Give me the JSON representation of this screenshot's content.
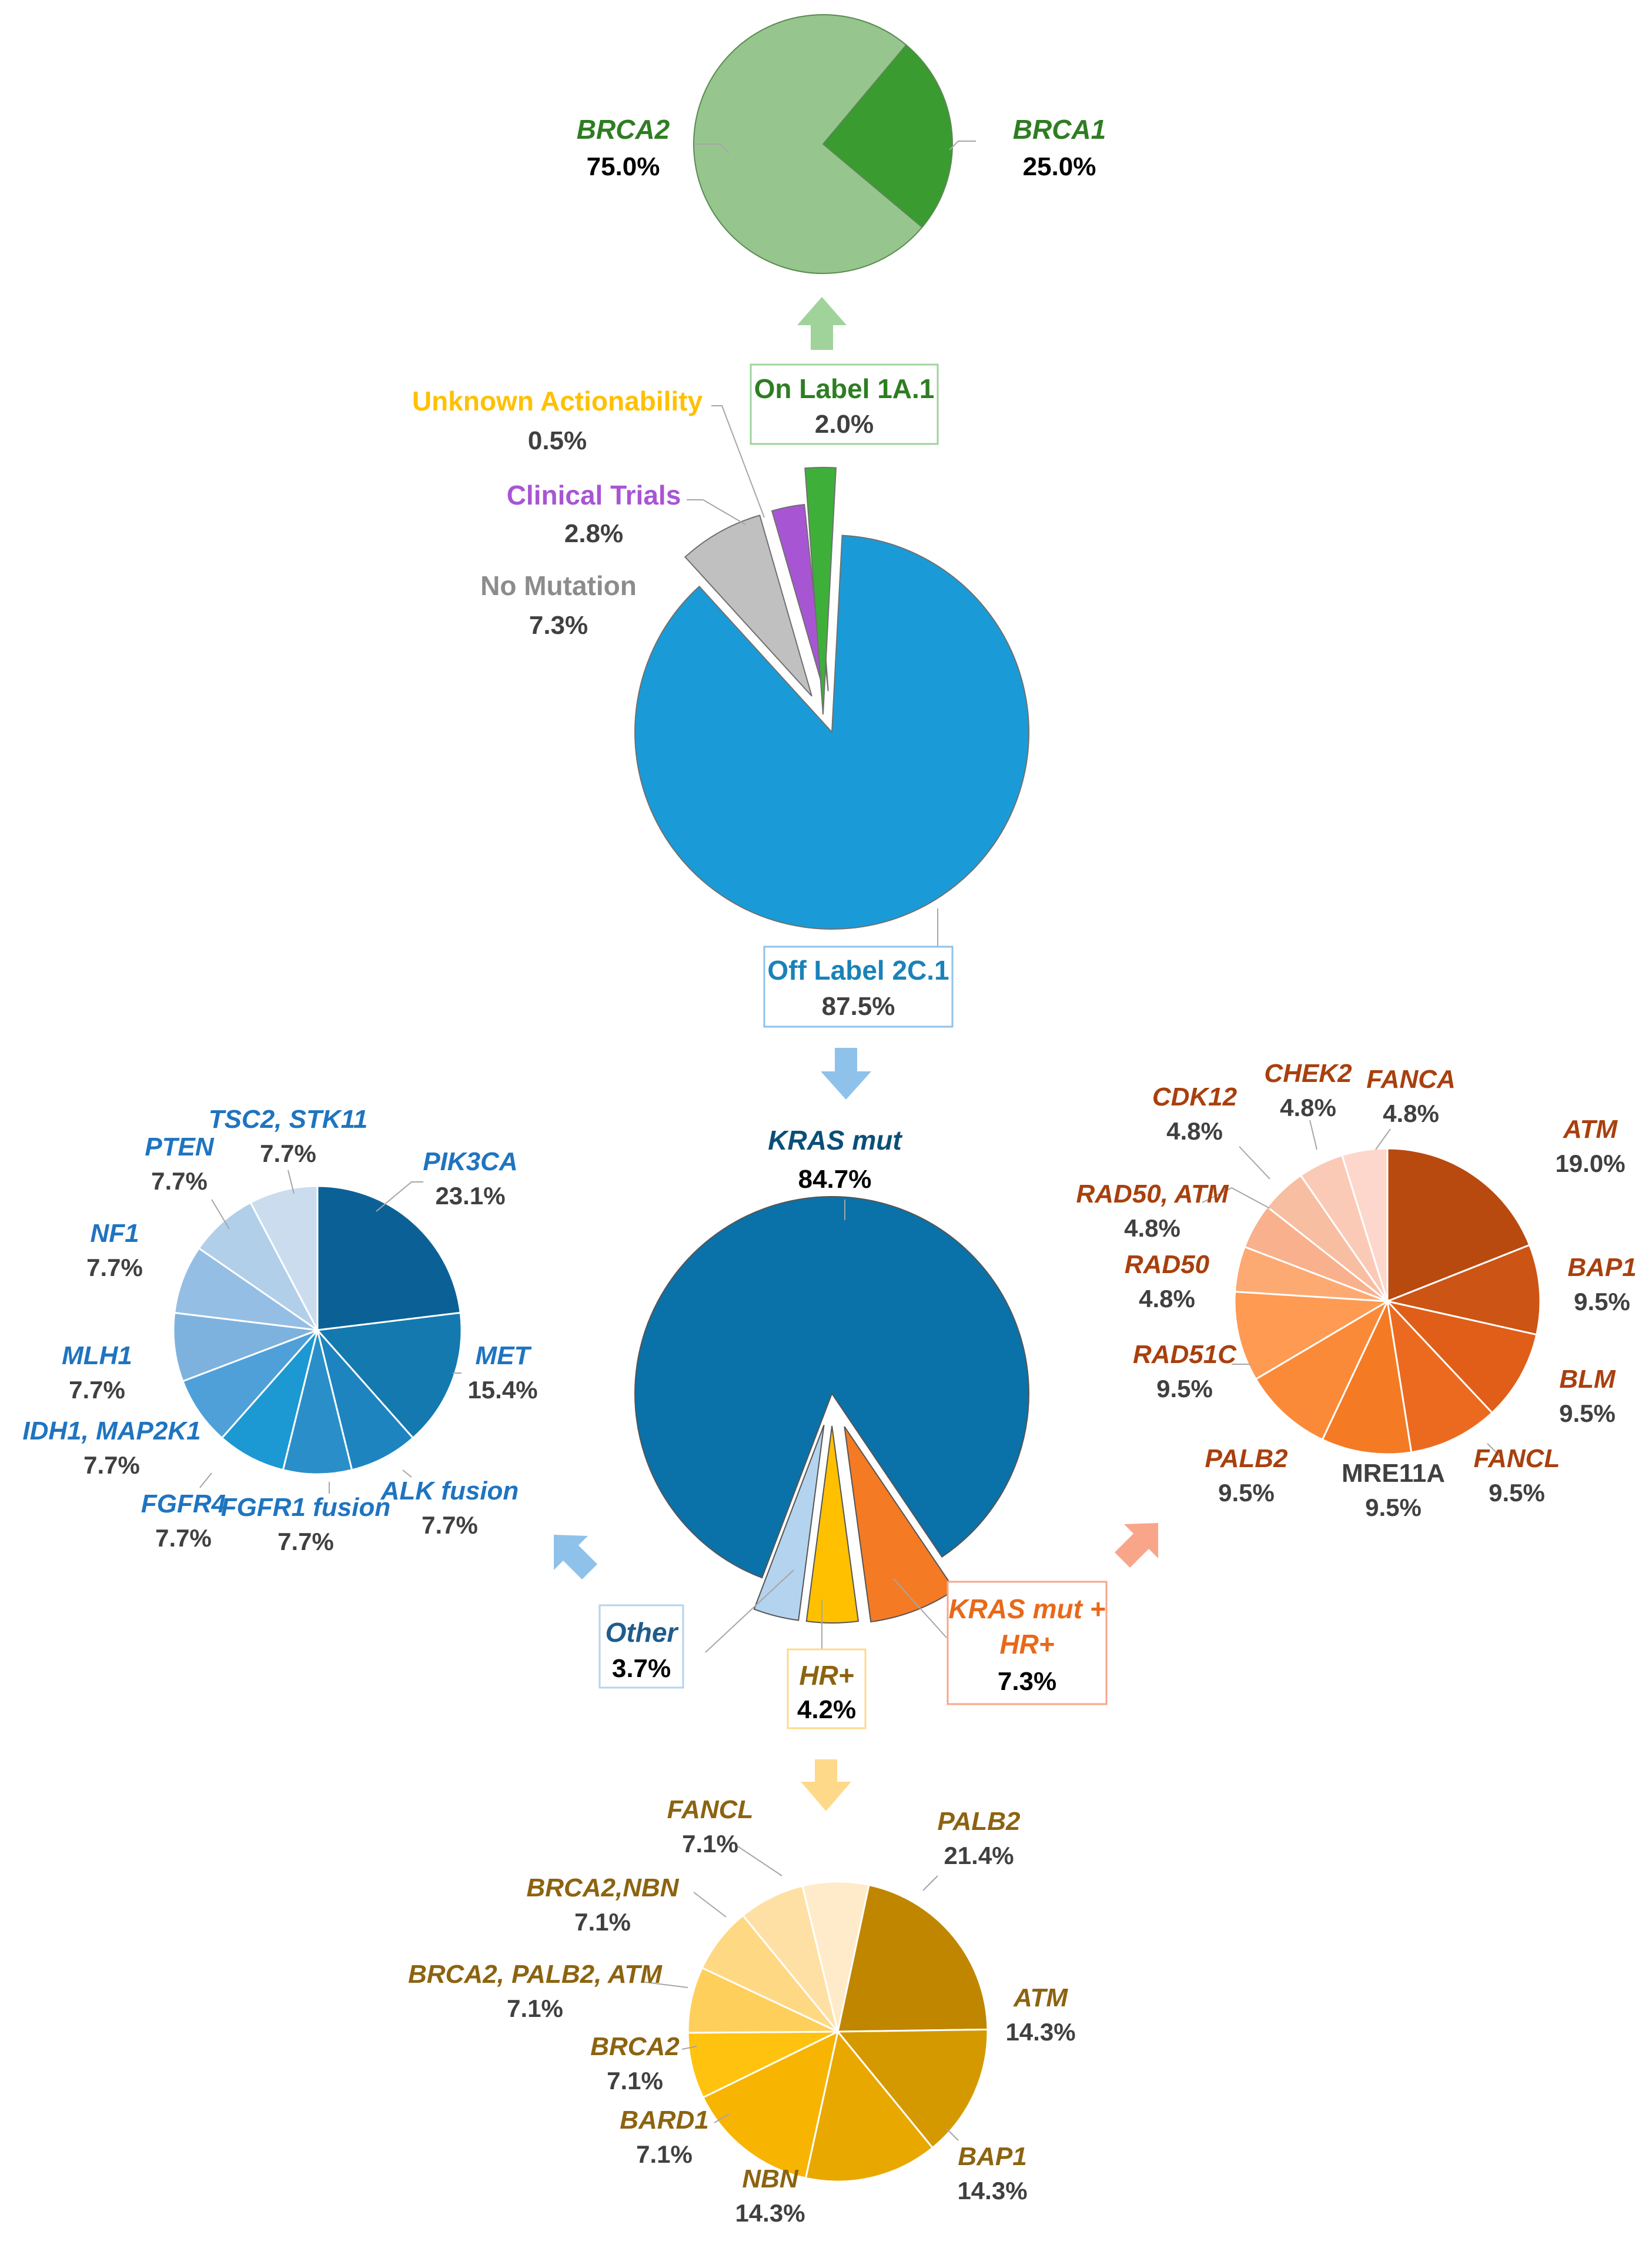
{
  "chart_data": [
    {
      "id": "top",
      "type": "pie",
      "labels": [
        "BRCA1",
        "BRCA2"
      ],
      "values": [
        25.0,
        75.0
      ],
      "value_labels": [
        "25.0%",
        "75.0%"
      ],
      "colors": [
        "#3a9b30",
        "#96c68d"
      ]
    },
    {
      "id": "main",
      "type": "pie",
      "labels": [
        "Off Label 2C.1",
        "No Mutation",
        "Clinical Trials",
        "Unknown Actionability",
        "On Label 1A.1"
      ],
      "values": [
        87.5,
        7.3,
        2.8,
        0.5,
        2.0
      ],
      "value_labels": [
        "87.5%",
        "7.3%",
        "2.8%",
        "0.5%",
        "2.0%"
      ],
      "colors": [
        "#1a9bd7",
        "#c0c0c0",
        "#a855d4",
        "#ffc000",
        "#3eb03a"
      ],
      "text_colors": [
        "#1a82b8",
        "#8c8c8c",
        "#a855d4",
        "#ffc000",
        "#3a8a2c"
      ]
    },
    {
      "id": "kras",
      "type": "pie",
      "labels": [
        "KRAS mut",
        "KRAS mut + HR+",
        "HR+",
        "Other"
      ],
      "values": [
        84.7,
        7.3,
        4.2,
        3.7
      ],
      "value_labels": [
        "84.7%",
        "7.3%",
        "4.2%",
        "3.7%"
      ],
      "colors": [
        "#0a72a8",
        "#f47a24",
        "#ffc000",
        "#b4d3ee"
      ],
      "text_colors": [
        "#0a4f78",
        "#e8691a",
        "#8c6310",
        "#1f5c8c"
      ]
    },
    {
      "id": "other",
      "type": "pie",
      "labels": [
        "PIK3CA",
        "MET",
        "ALK fusion",
        "FGFR1 fusion",
        "FGFR4",
        "IDH1, MAP2K1",
        "MLH1",
        "NF1",
        "PTEN",
        "TSC2, STK11"
      ],
      "values": [
        23.1,
        15.4,
        7.7,
        7.7,
        7.7,
        7.7,
        7.7,
        7.7,
        7.7,
        7.7
      ],
      "value_labels": [
        "23.1%",
        "15.4%",
        "7.7%",
        "7.7%",
        "7.7%",
        "7.7%",
        "7.7%",
        "7.7%",
        "7.7%",
        "7.7%"
      ],
      "colors": [
        "#0b6195",
        "#1479ae",
        "#1e84c0",
        "#2a8fc8",
        "#1c98d2",
        "#4fa0d8",
        "#7eb2de",
        "#95bee4",
        "#b2cfea",
        "#cbdcef"
      ]
    },
    {
      "id": "krashr",
      "type": "pie",
      "labels": [
        "ATM",
        "BAP1",
        "BLM",
        "FANCL",
        "MRE11A",
        "PALB2",
        "RAD51C",
        "RAD50",
        "RAD50, ATM",
        "CDK12",
        "CHEK2",
        "FANCA"
      ],
      "values": [
        19.0,
        9.5,
        9.5,
        9.5,
        9.5,
        9.5,
        9.5,
        4.8,
        4.8,
        4.8,
        4.8,
        4.8
      ],
      "value_labels": [
        "19.0%",
        "9.5%",
        "9.5%",
        "9.5%",
        "9.5%",
        "9.5%",
        "9.5%",
        "4.8%",
        "4.8%",
        "4.8%",
        "4.8%",
        "4.8%"
      ],
      "colors": [
        "#b84a10",
        "#cc5414",
        "#e05e18",
        "#ec6a20",
        "#f47a24",
        "#fb8a38",
        "#fe9a52",
        "#fdaa72",
        "#f9b08c",
        "#f8bea2",
        "#fbcab6",
        "#fdd7cb"
      ]
    },
    {
      "id": "hr",
      "type": "pie",
      "labels": [
        "PALB2",
        "ATM",
        "BAP1",
        "NBN",
        "BARD1",
        "BRCA2",
        "BRCA2,  PALB2, ATM",
        "BRCA2,NBN",
        "FANCL"
      ],
      "values": [
        21.4,
        14.3,
        14.3,
        14.3,
        7.1,
        7.1,
        7.1,
        7.1,
        7.1
      ],
      "value_labels": [
        "21.4%",
        "14.3%",
        "14.3%",
        "14.3%",
        "7.1%",
        "7.1%",
        "7.1%",
        "7.1%",
        "7.1%"
      ],
      "colors": [
        "#c08600",
        "#d59900",
        "#e9a800",
        "#f7b400",
        "#ffc20e",
        "#ffcf5c",
        "#ffd884",
        "#ffe0a4",
        "#ffebc9"
      ]
    }
  ],
  "labels": {
    "top": {
      "brca2": {
        "name": "BRCA2",
        "value": "75.0%"
      },
      "brca1": {
        "name": "BRCA1",
        "value": "25.0%"
      }
    },
    "main": {
      "on_label": {
        "name": "On Label 1A.1",
        "value": "2.0%"
      },
      "unknown": {
        "name": "Unknown Actionability",
        "value": "0.5%"
      },
      "clinical": {
        "name": "Clinical Trials",
        "value": "2.8%"
      },
      "no_mutation": {
        "name": "No Mutation",
        "value": "7.3%"
      },
      "off_label": {
        "name": "Off Label 2C.1",
        "value": "87.5%"
      }
    },
    "kras": {
      "kras_mut": {
        "name": "KRAS mut",
        "value": "84.7%"
      },
      "other": {
        "name": "Other",
        "value": "3.7%"
      },
      "hr": {
        "name": "HR+",
        "value": "4.2%"
      },
      "kras_hr": {
        "name_line1": "KRAS mut +",
        "name_line2": "HR+",
        "value": "7.3%"
      }
    }
  },
  "colors": {
    "green_text": "#2e7d22",
    "blue_text": "#1a82b8",
    "other_text": "#1f74c0",
    "krashr_text": "#a8400e",
    "hr_text": "#8c6310",
    "arrow_green": "#9fd39a",
    "arrow_blue": "#8fc2ea",
    "arrow_orange": "#f9a58a",
    "arrow_yellow": "#ffd98a"
  }
}
